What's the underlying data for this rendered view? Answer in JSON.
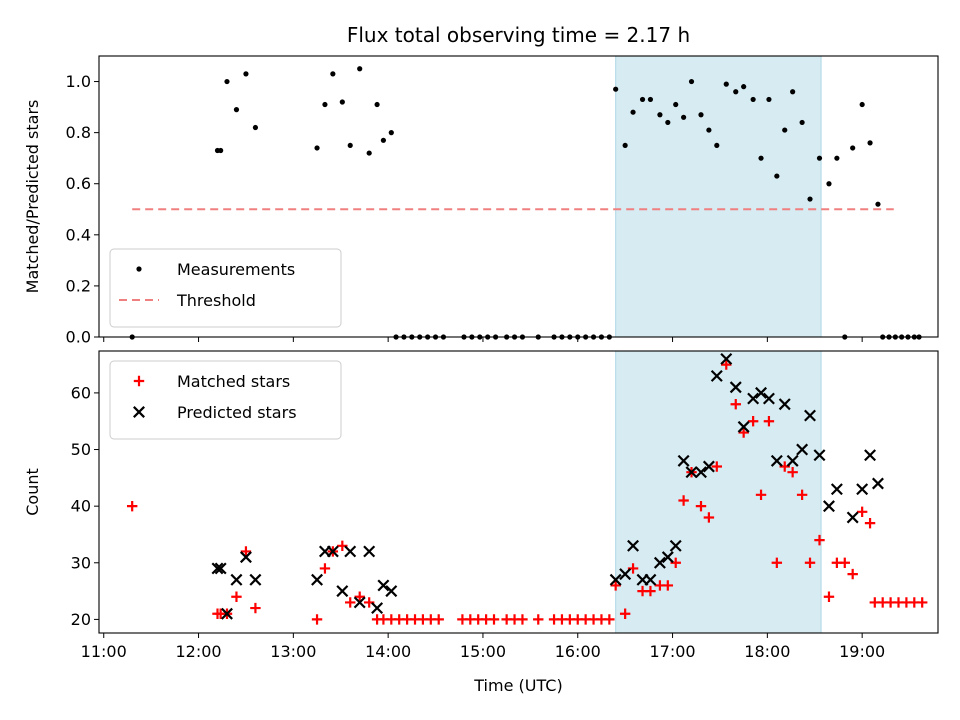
{
  "chart_data": {
    "type": "scatter",
    "title": "Flux total observing time = 2.17 h",
    "xlabel": "Time (UTC)",
    "x_range_hours": [
      10.95,
      19.8
    ],
    "x_ticks": [
      "11:00",
      "12:00",
      "13:00",
      "14:00",
      "15:00",
      "16:00",
      "17:00",
      "18:00",
      "19:00"
    ],
    "shaded_region": [
      "16:24",
      "18:34"
    ],
    "shade_color": "#add8e6",
    "panels": [
      {
        "ylabel": "Matched/Predicted stars",
        "ylim": [
          0,
          1.1
        ],
        "y_ticks": [
          "0.0",
          "0.2",
          "0.4",
          "0.6",
          "0.8",
          "1.0"
        ],
        "legend_location": "lower-left",
        "threshold": {
          "name": "Threshold",
          "value": 0.5,
          "x_start": "11:18",
          "x_end": "19:20",
          "color": "#f08080"
        },
        "series": [
          {
            "name": "Measurements",
            "marker": "dot",
            "color": "#000000",
            "points": [
              [
                "11:18",
                0.0
              ],
              [
                "12:12",
                0.73
              ],
              [
                "12:14",
                0.73
              ],
              [
                "12:18",
                1.0
              ],
              [
                "12:24",
                0.89
              ],
              [
                "12:30",
                1.03
              ],
              [
                "12:36",
                0.82
              ],
              [
                "13:15",
                0.74
              ],
              [
                "13:20",
                0.91
              ],
              [
                "13:25",
                1.03
              ],
              [
                "13:31",
                0.92
              ],
              [
                "13:36",
                0.75
              ],
              [
                "13:42",
                1.05
              ],
              [
                "13:48",
                0.72
              ],
              [
                "13:53",
                0.91
              ],
              [
                "13:57",
                0.77
              ],
              [
                "14:02",
                0.8
              ],
              [
                "14:05",
                0.0
              ],
              [
                "14:10",
                0.0
              ],
              [
                "14:15",
                0.0
              ],
              [
                "14:20",
                0.0
              ],
              [
                "14:25",
                0.0
              ],
              [
                "14:30",
                0.0
              ],
              [
                "14:35",
                0.0
              ],
              [
                "14:48",
                0.0
              ],
              [
                "14:53",
                0.0
              ],
              [
                "14:58",
                0.0
              ],
              [
                "15:03",
                0.0
              ],
              [
                "15:08",
                0.0
              ],
              [
                "15:15",
                0.0
              ],
              [
                "15:20",
                0.0
              ],
              [
                "15:25",
                0.0
              ],
              [
                "15:35",
                0.0
              ],
              [
                "15:45",
                0.0
              ],
              [
                "15:50",
                0.0
              ],
              [
                "15:55",
                0.0
              ],
              [
                "16:00",
                0.0
              ],
              [
                "16:05",
                0.0
              ],
              [
                "16:10",
                0.0
              ],
              [
                "16:15",
                0.0
              ],
              [
                "16:20",
                0.0
              ],
              [
                "16:24",
                0.97
              ],
              [
                "16:30",
                0.75
              ],
              [
                "16:35",
                0.88
              ],
              [
                "16:41",
                0.93
              ],
              [
                "16:46",
                0.93
              ],
              [
                "16:52",
                0.87
              ],
              [
                "16:57",
                0.84
              ],
              [
                "17:02",
                0.91
              ],
              [
                "17:07",
                0.86
              ],
              [
                "17:12",
                1.0
              ],
              [
                "17:18",
                0.87
              ],
              [
                "17:23",
                0.81
              ],
              [
                "17:28",
                0.75
              ],
              [
                "17:34",
                0.99
              ],
              [
                "17:40",
                0.96
              ],
              [
                "17:45",
                0.98
              ],
              [
                "17:51",
                0.93
              ],
              [
                "17:56",
                0.7
              ],
              [
                "18:01",
                0.93
              ],
              [
                "18:06",
                0.63
              ],
              [
                "18:11",
                0.81
              ],
              [
                "18:16",
                0.96
              ],
              [
                "18:22",
                0.84
              ],
              [
                "18:27",
                0.54
              ],
              [
                "18:33",
                0.7
              ],
              [
                "18:39",
                0.6
              ],
              [
                "18:44",
                0.7
              ],
              [
                "18:49",
                0.0
              ],
              [
                "18:54",
                0.74
              ],
              [
                "19:00",
                0.91
              ],
              [
                "19:05",
                0.76
              ],
              [
                "19:10",
                0.52
              ],
              [
                "19:13",
                0.0
              ],
              [
                "19:17",
                0.0
              ],
              [
                "19:21",
                0.0
              ],
              [
                "19:25",
                0.0
              ],
              [
                "19:29",
                0.0
              ],
              [
                "19:33",
                0.0
              ],
              [
                "19:36",
                0.0
              ]
            ]
          }
        ]
      },
      {
        "ylabel": "Count",
        "ylim": [
          17.6,
          67.4
        ],
        "y_ticks": [
          "20",
          "30",
          "40",
          "50",
          "60"
        ],
        "legend_location": "upper-left",
        "series": [
          {
            "name": "Matched stars",
            "marker": "plus",
            "color": "#ff0000",
            "points": [
              [
                "11:18",
                40
              ],
              [
                "12:12",
                21
              ],
              [
                "12:14",
                21
              ],
              [
                "12:18",
                21
              ],
              [
                "12:24",
                24
              ],
              [
                "12:30",
                32
              ],
              [
                "12:36",
                22
              ],
              [
                "13:15",
                20
              ],
              [
                "13:20",
                29
              ],
              [
                "13:25",
                32
              ],
              [
                "13:31",
                33
              ],
              [
                "13:36",
                23
              ],
              [
                "13:42",
                24
              ],
              [
                "13:48",
                23
              ],
              [
                "13:53",
                20
              ],
              [
                "13:57",
                20
              ],
              [
                "14:02",
                20
              ],
              [
                "14:07",
                20
              ],
              [
                "14:12",
                20
              ],
              [
                "14:17",
                20
              ],
              [
                "14:22",
                20
              ],
              [
                "14:27",
                20
              ],
              [
                "14:32",
                20
              ],
              [
                "14:47",
                20
              ],
              [
                "14:52",
                20
              ],
              [
                "14:57",
                20
              ],
              [
                "15:02",
                20
              ],
              [
                "15:07",
                20
              ],
              [
                "15:15",
                20
              ],
              [
                "15:20",
                20
              ],
              [
                "15:25",
                20
              ],
              [
                "15:35",
                20
              ],
              [
                "15:45",
                20
              ],
              [
                "15:50",
                20
              ],
              [
                "15:55",
                20
              ],
              [
                "16:00",
                20
              ],
              [
                "16:05",
                20
              ],
              [
                "16:10",
                20
              ],
              [
                "16:15",
                20
              ],
              [
                "16:20",
                20
              ],
              [
                "16:24",
                26
              ],
              [
                "16:30",
                21
              ],
              [
                "16:35",
                29
              ],
              [
                "16:41",
                25
              ],
              [
                "16:46",
                25
              ],
              [
                "16:52",
                26
              ],
              [
                "16:57",
                26
              ],
              [
                "17:02",
                30
              ],
              [
                "17:07",
                41
              ],
              [
                "17:12",
                46
              ],
              [
                "17:18",
                40
              ],
              [
                "17:23",
                38
              ],
              [
                "17:28",
                47
              ],
              [
                "17:34",
                65
              ],
              [
                "17:40",
                58
              ],
              [
                "17:45",
                53
              ],
              [
                "17:51",
                55
              ],
              [
                "17:56",
                42
              ],
              [
                "18:01",
                55
              ],
              [
                "18:06",
                30
              ],
              [
                "18:11",
                47
              ],
              [
                "18:16",
                46
              ],
              [
                "18:22",
                42
              ],
              [
                "18:27",
                30
              ],
              [
                "18:33",
                34
              ],
              [
                "18:39",
                24
              ],
              [
                "18:44",
                30
              ],
              [
                "18:49",
                30
              ],
              [
                "18:54",
                28
              ],
              [
                "19:00",
                39
              ],
              [
                "19:05",
                37
              ],
              [
                "19:08",
                23
              ],
              [
                "19:13",
                23
              ],
              [
                "19:18",
                23
              ],
              [
                "19:23",
                23
              ],
              [
                "19:28",
                23
              ],
              [
                "19:33",
                23
              ],
              [
                "19:38",
                23
              ]
            ]
          },
          {
            "name": "Predicted stars",
            "marker": "x",
            "color": "#000000",
            "points": [
              [
                "12:12",
                29
              ],
              [
                "12:14",
                29
              ],
              [
                "12:18",
                21
              ],
              [
                "12:24",
                27
              ],
              [
                "12:30",
                31
              ],
              [
                "12:36",
                27
              ],
              [
                "13:15",
                27
              ],
              [
                "13:20",
                32
              ],
              [
                "13:25",
                32
              ],
              [
                "13:31",
                25
              ],
              [
                "13:36",
                32
              ],
              [
                "13:42",
                23
              ],
              [
                "13:48",
                32
              ],
              [
                "13:53",
                22
              ],
              [
                "13:57",
                26
              ],
              [
                "14:02",
                25
              ],
              [
                "16:24",
                27
              ],
              [
                "16:30",
                28
              ],
              [
                "16:35",
                33
              ],
              [
                "16:41",
                27
              ],
              [
                "16:46",
                27
              ],
              [
                "16:52",
                30
              ],
              [
                "16:57",
                31
              ],
              [
                "17:02",
                33
              ],
              [
                "17:07",
                48
              ],
              [
                "17:12",
                46
              ],
              [
                "17:18",
                46
              ],
              [
                "17:23",
                47
              ],
              [
                "17:28",
                63
              ],
              [
                "17:34",
                66
              ],
              [
                "17:40",
                61
              ],
              [
                "17:45",
                54
              ],
              [
                "17:51",
                59
              ],
              [
                "17:56",
                60
              ],
              [
                "18:01",
                59
              ],
              [
                "18:06",
                48
              ],
              [
                "18:11",
                58
              ],
              [
                "18:16",
                48
              ],
              [
                "18:22",
                50
              ],
              [
                "18:27",
                56
              ],
              [
                "18:33",
                49
              ],
              [
                "18:39",
                40
              ],
              [
                "18:44",
                43
              ],
              [
                "18:54",
                38
              ],
              [
                "19:00",
                43
              ],
              [
                "19:05",
                49
              ],
              [
                "19:10",
                44
              ]
            ]
          }
        ]
      }
    ]
  }
}
